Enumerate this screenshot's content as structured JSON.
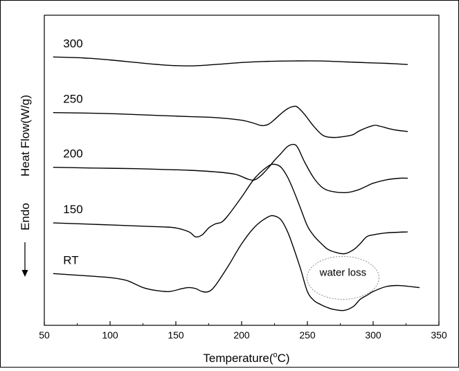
{
  "chart_data": {
    "type": "line",
    "title": "",
    "xlabel": "Temperature(°C)",
    "xlabel_main": "Temperature(",
    "xlabel_unit_sup": "o",
    "xlabel_unit_rest": "C)",
    "ylabel": "Heat Flow(W/g)",
    "ylabel_secondary": "Endo",
    "xlim": [
      50,
      350
    ],
    "x_ticks": [
      50,
      100,
      150,
      200,
      250,
      300,
      350
    ],
    "x_tick_labels": [
      "50",
      "100",
      "150",
      "200",
      "250",
      "300",
      "350"
    ],
    "y_ticks_shown": false,
    "grid": false,
    "legend": "none (curves labeled inline)",
    "annotation": {
      "text": "water loss",
      "x": 276,
      "y": -1.9,
      "style": "dotted ellipse"
    },
    "series": [
      {
        "name": "300",
        "x": [
          57,
          80,
          100,
          120,
          140,
          160,
          180,
          200,
          220,
          240,
          260,
          280,
          300,
          310,
          326
        ],
        "y": [
          8.9,
          8.85,
          8.75,
          8.62,
          8.5,
          8.45,
          8.52,
          8.62,
          8.68,
          8.7,
          8.7,
          8.65,
          8.6,
          8.58,
          8.52
        ]
      },
      {
        "name": "250",
        "x": [
          57,
          80,
          100,
          120,
          140,
          160,
          180,
          200,
          210,
          215,
          220,
          225,
          230,
          235,
          240,
          243,
          248,
          255,
          262,
          270,
          280,
          285,
          290,
          300,
          305,
          315,
          326
        ],
        "y": [
          6.1,
          6.08,
          6.05,
          6.0,
          5.95,
          5.9,
          5.85,
          5.72,
          5.55,
          5.45,
          5.5,
          5.75,
          6.05,
          6.3,
          6.42,
          6.35,
          6.0,
          5.4,
          4.95,
          4.85,
          4.92,
          5.0,
          5.2,
          5.45,
          5.42,
          5.25,
          5.15
        ]
      },
      {
        "name": "200",
        "x": [
          57,
          80,
          100,
          120,
          140,
          160,
          180,
          195,
          205,
          210,
          215,
          220,
          225,
          230,
          235,
          240,
          243,
          248,
          255,
          262,
          270,
          280,
          288,
          295,
          300,
          310,
          320,
          326
        ],
        "y": [
          3.35,
          3.32,
          3.3,
          3.28,
          3.24,
          3.2,
          3.12,
          3.0,
          2.75,
          2.72,
          2.95,
          3.3,
          3.7,
          4.05,
          4.4,
          4.5,
          4.3,
          3.6,
          2.8,
          2.3,
          2.12,
          2.08,
          2.2,
          2.4,
          2.55,
          2.72,
          2.8,
          2.8
        ]
      },
      {
        "name": "150",
        "x": [
          57,
          80,
          100,
          120,
          140,
          150,
          160,
          165,
          170,
          175,
          180,
          185,
          190,
          200,
          210,
          220,
          225,
          230,
          235,
          240,
          245,
          250,
          255,
          260,
          265,
          270,
          278,
          285,
          290,
          295,
          300,
          310,
          326
        ],
        "y": [
          0.55,
          0.5,
          0.45,
          0.4,
          0.35,
          0.3,
          0.1,
          -0.15,
          -0.05,
          0.3,
          0.5,
          0.6,
          0.95,
          1.85,
          2.8,
          3.4,
          3.5,
          3.35,
          2.85,
          2.1,
          1.25,
          0.4,
          -0.1,
          -0.45,
          -0.75,
          -0.9,
          -1.0,
          -0.8,
          -0.5,
          -0.15,
          -0.05,
          0.05,
          0.1
        ]
      },
      {
        "name": "RT",
        "x": [
          57,
          80,
          100,
          110,
          115,
          125,
          135,
          145,
          155,
          160,
          165,
          170,
          175,
          180,
          190,
          200,
          210,
          220,
          225,
          230,
          235,
          240,
          245,
          250,
          255,
          260,
          265,
          270,
          278,
          285,
          290,
          295,
          300,
          310,
          320,
          335
        ],
        "y": [
          -2.0,
          -2.1,
          -2.2,
          -2.3,
          -2.4,
          -2.7,
          -2.85,
          -2.9,
          -2.75,
          -2.7,
          -2.75,
          -2.9,
          -2.9,
          -2.6,
          -1.6,
          -0.5,
          0.35,
          0.85,
          0.9,
          0.7,
          0.1,
          -0.8,
          -1.8,
          -2.9,
          -3.35,
          -3.55,
          -3.7,
          -3.8,
          -3.85,
          -3.65,
          -3.3,
          -3.1,
          -2.9,
          -2.65,
          -2.6,
          -2.7
        ]
      }
    ],
    "ylim": [
      -4.6,
      11.0
    ]
  },
  "colors": {
    "line": "#000000",
    "annotation_ellipse": "#8a8a8a",
    "background": "#ffffff"
  }
}
